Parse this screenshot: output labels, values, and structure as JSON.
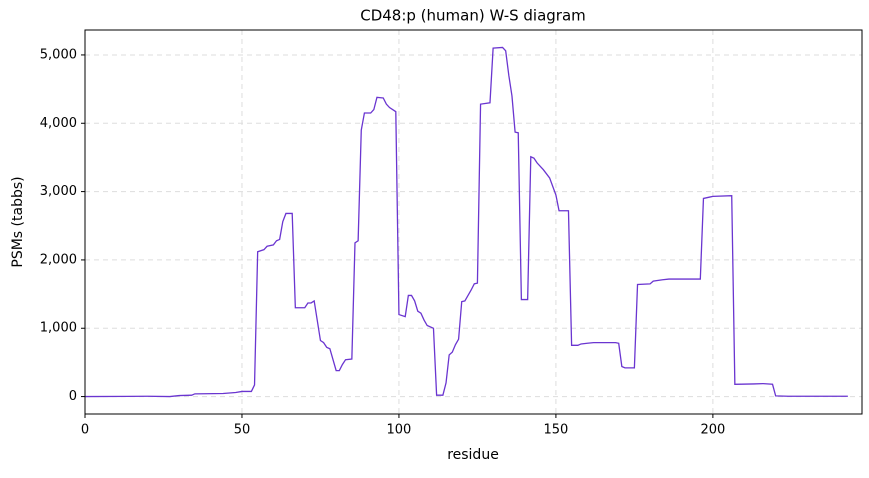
{
  "chart_data": {
    "type": "line",
    "title": "CD48:p (human) W-S diagram",
    "xlabel": "residue",
    "ylabel": "PSMs (tabbs)",
    "color": "#6a35d0",
    "grid": true,
    "x": [
      0,
      20,
      27,
      30,
      34,
      35,
      44,
      48,
      50,
      53,
      54,
      55,
      57,
      58,
      60,
      61,
      62,
      63,
      64,
      66,
      67,
      70,
      71,
      72,
      73,
      75,
      76,
      77,
      78,
      80,
      81,
      82,
      83,
      85,
      86,
      87,
      88,
      89,
      91,
      92,
      93,
      95,
      96,
      97,
      99,
      100,
      102,
      103,
      104,
      105,
      106,
      107,
      108,
      109,
      111,
      112,
      114,
      115,
      116,
      117,
      118,
      119,
      120,
      121,
      122,
      123,
      124,
      125,
      126,
      129,
      130,
      133,
      134,
      135,
      136,
      137,
      138,
      139,
      141,
      142,
      143,
      144,
      146,
      148,
      150,
      151,
      154,
      155,
      157,
      158,
      160,
      162,
      169,
      170,
      171,
      172,
      175,
      176,
      180,
      181,
      184,
      186,
      196,
      197,
      199,
      200,
      206,
      207,
      213,
      216,
      219,
      220,
      224,
      243
    ],
    "values": [
      0,
      5,
      0,
      15,
      20,
      40,
      45,
      60,
      75,
      75,
      170,
      2120,
      2150,
      2200,
      2220,
      2280,
      2300,
      2560,
      2680,
      2680,
      1300,
      1300,
      1370,
      1370,
      1400,
      820,
      790,
      720,
      700,
      380,
      380,
      470,
      540,
      550,
      2250,
      2280,
      3900,
      4150,
      4150,
      4200,
      4380,
      4370,
      4280,
      4230,
      4170,
      1200,
      1170,
      1480,
      1480,
      1400,
      1250,
      1220,
      1120,
      1040,
      1000,
      20,
      20,
      200,
      610,
      650,
      760,
      840,
      1390,
      1400,
      1480,
      1560,
      1650,
      1660,
      4280,
      4300,
      5100,
      5110,
      5060,
      4700,
      4400,
      3870,
      3860,
      1420,
      1420,
      3510,
      3490,
      3420,
      3320,
      3200,
      2950,
      2720,
      2720,
      750,
      750,
      770,
      780,
      790,
      790,
      780,
      440,
      420,
      420,
      1640,
      1650,
      1690,
      1710,
      1720,
      1720,
      2900,
      2920,
      2930,
      2940,
      180,
      185,
      190,
      180,
      10,
      5,
      5
    ],
    "xlim": [
      0,
      247.5
    ],
    "xticks": [
      0,
      50,
      100,
      150,
      200
    ],
    "ylim": [
      -255,
      5365
    ],
    "yticks": [
      {
        "value": 0,
        "label": "0"
      },
      {
        "value": 1000,
        "label": "1,000"
      },
      {
        "value": 2000,
        "label": "2,000"
      },
      {
        "value": 3000,
        "label": "3,000"
      },
      {
        "value": 4000,
        "label": "4,000"
      },
      {
        "value": 5000,
        "label": "5,000"
      }
    ]
  }
}
